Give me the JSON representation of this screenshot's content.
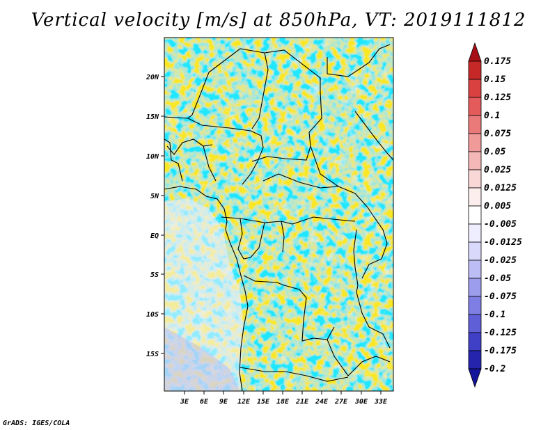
{
  "title": "Vertical velocity [m/s] at 850hPa, VT: 2019111812",
  "footer": "GrADS: IGES/COLA",
  "map": {
    "lon_ticks": [
      "3E",
      "6E",
      "9E",
      "12E",
      "15E",
      "18E",
      "21E",
      "24E",
      "27E",
      "30E",
      "33E"
    ],
    "lat_ticks": [
      "20N",
      "15N",
      "10N",
      "5N",
      "EQ",
      "5S",
      "10S",
      "15S"
    ]
  },
  "colorbar": {
    "labels": [
      "0.175",
      "0.15",
      "0.125",
      "0.1",
      "0.075",
      "0.05",
      "0.025",
      "0.0125",
      "0.005",
      "-0.005",
      "-0.0125",
      "-0.025",
      "-0.05",
      "-0.075",
      "-0.1",
      "-0.125",
      "-0.175",
      "-0.2"
    ],
    "colors": [
      "#a50f15",
      "#c62828",
      "#d94040",
      "#e35b5b",
      "#ea7a7a",
      "#f09a9a",
      "#f5b8b8",
      "#fad7d7",
      "#fdeeee",
      "#ffffff",
      "#eeeeff",
      "#d9d9fb",
      "#bdbdf5",
      "#9d9dee",
      "#7e7ee4",
      "#5f5fd7",
      "#4040c6",
      "#2424ad",
      "#14149a"
    ]
  }
}
